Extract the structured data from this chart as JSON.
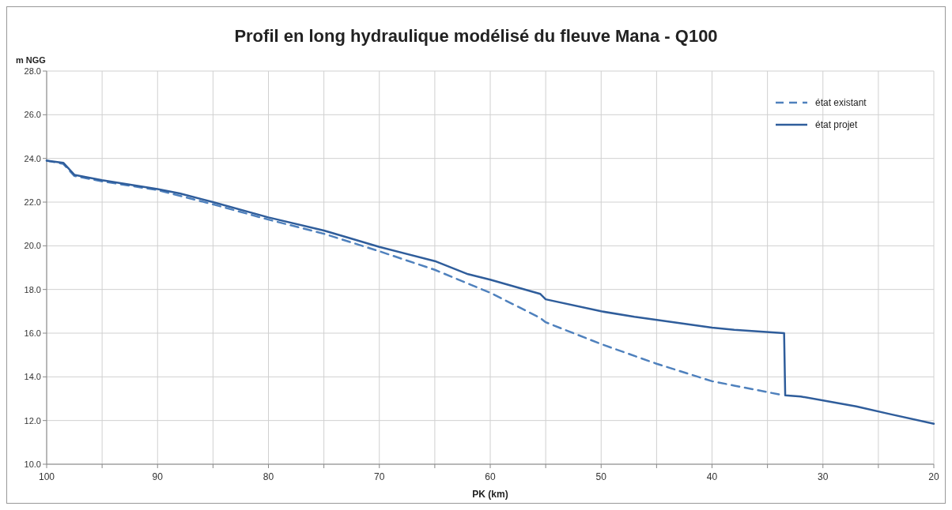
{
  "chart_data": {
    "type": "line",
    "title": "Profil en long hydraulique modélisé du fleuve Mana - Q100",
    "xlabel": "PK (km)",
    "ylabel": "m NGG",
    "xlim": [
      100,
      20
    ],
    "xticks": [
      100,
      {
        "value": 95,
        "label": null
      },
      90,
      {
        "value": 85,
        "label": null
      },
      80,
      {
        "value": 75,
        "label": null
      },
      70,
      {
        "value": 65,
        "label": null
      },
      60,
      {
        "value": 55,
        "label": null
      },
      50,
      {
        "value": 45,
        "label": null
      },
      40,
      {
        "value": 35,
        "label": null
      },
      30,
      {
        "value": 25,
        "label": null
      },
      20
    ],
    "ylim": [
      10,
      28
    ],
    "yticks": [
      {
        "value": 10,
        "label": "10.0"
      },
      {
        "value": 12,
        "label": "12.0"
      },
      {
        "value": 14,
        "label": "14.0"
      },
      {
        "value": 16,
        "label": "16.0"
      },
      {
        "value": 18,
        "label": "18.0"
      },
      {
        "value": 20,
        "label": "20.0"
      },
      {
        "value": 22,
        "label": "22.0"
      },
      {
        "value": 24,
        "label": "24.0"
      },
      {
        "value": 26,
        "label": "26.0"
      },
      {
        "value": 28,
        "label": "28.0"
      }
    ],
    "grid": true,
    "legend": "top right",
    "series": [
      {
        "name": "état existant",
        "color": "#4f81bd",
        "line_style": "dashed",
        "x": [
          100,
          98.5,
          97.5,
          95,
          90,
          85,
          80,
          75,
          70,
          65,
          60,
          55.5,
          55,
          50,
          45,
          40,
          38,
          33.5
        ],
        "values": [
          23.9,
          23.75,
          23.2,
          22.95,
          22.55,
          21.9,
          21.2,
          20.55,
          19.75,
          18.9,
          17.85,
          16.7,
          16.5,
          15.5,
          14.6,
          13.8,
          13.6,
          13.15
        ]
      },
      {
        "name": "état projet",
        "color": "#2f5d9b",
        "line_style": "solid",
        "x": [
          100,
          98.5,
          97.5,
          95,
          90,
          88,
          85,
          80,
          75,
          73,
          70,
          65,
          62,
          60,
          55.5,
          55,
          50,
          47,
          40,
          38,
          33.5,
          33.4,
          32,
          27,
          24,
          20
        ],
        "values": [
          23.9,
          23.8,
          23.25,
          23.0,
          22.6,
          22.4,
          22.0,
          21.3,
          20.7,
          20.4,
          19.95,
          19.3,
          18.7,
          18.45,
          17.8,
          17.55,
          17.0,
          16.75,
          16.25,
          16.15,
          16.0,
          13.15,
          13.1,
          12.65,
          12.3,
          11.85
        ]
      }
    ]
  }
}
